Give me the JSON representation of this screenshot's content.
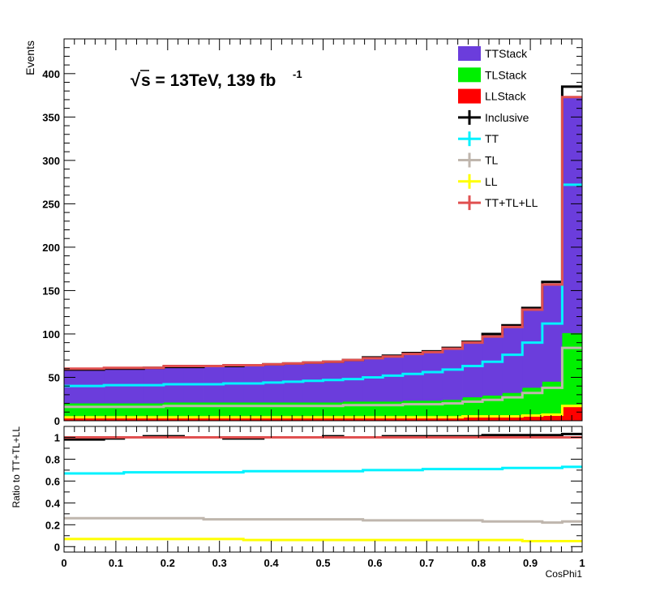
{
  "chart_data": [
    {
      "type": "stacked-histogram",
      "ylabel": "Events",
      "xlim": [
        0,
        1
      ],
      "ylim": [
        0,
        440
      ],
      "yticks": [
        0,
        50,
        100,
        150,
        200,
        250,
        300,
        350,
        400
      ],
      "xticks": [
        "0",
        "0.1",
        "0.2",
        "0.3",
        "0.4",
        "0.5",
        "0.6",
        "0.7",
        "0.8",
        "0.9",
        "1"
      ],
      "annotation": {
        "sqrt": "√",
        "s_text": "s = 13TeV, 139 fb",
        "superscript": "-1"
      },
      "bin_edges_count": 26,
      "stack": [
        {
          "name": "TTStack",
          "color": "#6b3ddc",
          "values": [
            40,
            40,
            41,
            41,
            41,
            42,
            42,
            42,
            43,
            43,
            44,
            45,
            46,
            47,
            48,
            50,
            52,
            54,
            56,
            59,
            63,
            68,
            76,
            90,
            112,
            272
          ]
        },
        {
          "name": "TLStack",
          "color": "#00f000",
          "values": [
            16,
            16,
            16,
            16,
            16,
            17,
            17,
            17,
            17,
            17,
            17,
            17,
            17,
            17,
            18,
            18,
            18,
            19,
            19,
            20,
            22,
            24,
            27,
            32,
            38,
            84
          ]
        },
        {
          "name": "LLStack",
          "color": "#ff0000",
          "values": [
            4,
            4,
            4,
            4,
            4,
            4,
            4,
            4,
            4,
            4,
            4,
            4,
            4,
            4,
            4,
            4,
            4,
            4,
            4,
            4,
            5,
            5,
            5,
            6,
            7,
            17
          ]
        }
      ],
      "lines": [
        {
          "name": "Inclusive",
          "color": "#000000",
          "values": [
            59,
            59,
            60,
            60,
            61,
            62,
            62,
            63,
            63,
            64,
            65,
            66,
            67,
            68,
            70,
            73,
            75,
            78,
            80,
            84,
            91,
            100,
            110,
            130,
            160,
            385
          ]
        },
        {
          "name": "TT",
          "color": "#00f2ff",
          "values": [
            40,
            40,
            41,
            41,
            41,
            42,
            42,
            42,
            43,
            43,
            44,
            45,
            46,
            47,
            48,
            50,
            52,
            54,
            56,
            59,
            63,
            68,
            76,
            90,
            112,
            272
          ]
        },
        {
          "name": "TL",
          "color": "#bfb6ad",
          "values": [
            16,
            16,
            16,
            16,
            16,
            17,
            17,
            17,
            17,
            17,
            17,
            17,
            17,
            17,
            18,
            18,
            18,
            19,
            19,
            20,
            22,
            24,
            27,
            32,
            38,
            84
          ]
        },
        {
          "name": "LL",
          "color": "#ffff00",
          "values": [
            4,
            4,
            4,
            4,
            4,
            4,
            4,
            4,
            4,
            4,
            4,
            4,
            4,
            4,
            4,
            4,
            4,
            4,
            4,
            4,
            5,
            5,
            5,
            6,
            7,
            17
          ]
        },
        {
          "name": "TT+TL+LL",
          "color": "#e05050",
          "values": [
            60,
            60,
            61,
            61,
            61,
            63,
            63,
            63,
            64,
            64,
            65,
            66,
            67,
            68,
            70,
            72,
            74,
            77,
            79,
            83,
            90,
            97,
            108,
            128,
            157,
            373
          ]
        }
      ],
      "legend": [
        "TTStack",
        "TLStack",
        "LLStack",
        "Inclusive",
        "TT",
        "TL",
        "LL",
        "TT+TL+LL"
      ],
      "legend_position": "top-right"
    },
    {
      "type": "line",
      "ylabel": "Ratio to TT+TL+LL",
      "xlabel": "CosPhi1",
      "xlim": [
        0,
        1
      ],
      "ylim": [
        -0.05,
        1.1
      ],
      "yticks": [
        "0",
        "0.2",
        "0.4",
        "0.6",
        "0.8",
        "1"
      ],
      "xticks": [
        "0",
        "0.1",
        "0.2",
        "0.3",
        "0.4",
        "0.5",
        "0.6",
        "0.7",
        "0.8",
        "0.9",
        "1"
      ],
      "series": [
        {
          "name": "Inclusive",
          "color": "#000000",
          "values": [
            0.98,
            0.98,
            0.99,
            1.0,
            1.01,
            1.01,
            1.0,
            1.0,
            0.99,
            0.99,
            1.0,
            1.0,
            1.0,
            1.01,
            1.0,
            1.0,
            1.01,
            1.01,
            1.01,
            1.01,
            1.01,
            1.02,
            1.02,
            1.02,
            1.02,
            1.03
          ]
        },
        {
          "name": "TT+TL+LL",
          "color": "#e05050",
          "values": [
            1,
            1,
            1,
            1,
            1,
            1,
            1,
            1,
            1,
            1,
            1,
            1,
            1,
            1,
            1,
            1,
            1,
            1,
            1,
            1,
            1,
            1,
            1,
            1,
            1,
            1
          ]
        },
        {
          "name": "TT",
          "color": "#00f2ff",
          "values": [
            0.67,
            0.67,
            0.67,
            0.68,
            0.68,
            0.68,
            0.68,
            0.68,
            0.68,
            0.69,
            0.69,
            0.69,
            0.69,
            0.69,
            0.69,
            0.7,
            0.7,
            0.7,
            0.71,
            0.71,
            0.71,
            0.71,
            0.72,
            0.72,
            0.72,
            0.73
          ]
        },
        {
          "name": "TL",
          "color": "#bfb6ad",
          "values": [
            0.26,
            0.26,
            0.26,
            0.26,
            0.26,
            0.26,
            0.26,
            0.25,
            0.25,
            0.25,
            0.25,
            0.25,
            0.25,
            0.25,
            0.25,
            0.24,
            0.24,
            0.24,
            0.24,
            0.24,
            0.24,
            0.23,
            0.23,
            0.23,
            0.22,
            0.23
          ]
        },
        {
          "name": "LL",
          "color": "#ffff00",
          "values": [
            0.07,
            0.07,
            0.07,
            0.07,
            0.07,
            0.07,
            0.07,
            0.07,
            0.07,
            0.06,
            0.06,
            0.06,
            0.06,
            0.06,
            0.06,
            0.06,
            0.06,
            0.06,
            0.06,
            0.06,
            0.06,
            0.06,
            0.06,
            0.05,
            0.05,
            0.05
          ]
        }
      ]
    }
  ]
}
